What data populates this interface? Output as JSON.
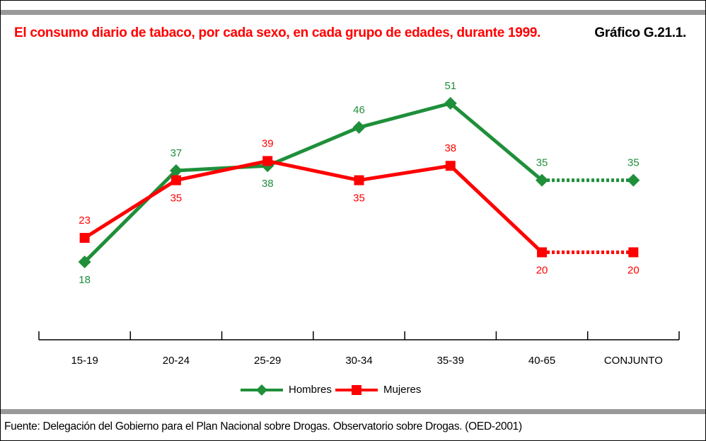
{
  "chart_data": {
    "type": "line",
    "title": "El consumo diario de tabaco, por cada sexo, en cada grupo de edades, durante 1999.",
    "figure_label": "Gráfico G.21.1.",
    "source": "Fuente: Delegación del Gobierno para el Plan Nacional sobre Drogas. Observatorio sobre Drogas. (OED-2001)",
    "categories": [
      "15-19",
      "20-24",
      "25-29",
      "30-34",
      "35-39",
      "40-65",
      "CONJUNTO"
    ],
    "series": [
      {
        "name": "Hombres",
        "color": "#1f8f3a",
        "values": [
          18,
          37,
          38,
          46,
          51,
          35,
          35
        ]
      },
      {
        "name": "Mujeres",
        "color": "#ff0000",
        "values": [
          23,
          35,
          39,
          35,
          38,
          20,
          20
        ]
      }
    ]
  }
}
